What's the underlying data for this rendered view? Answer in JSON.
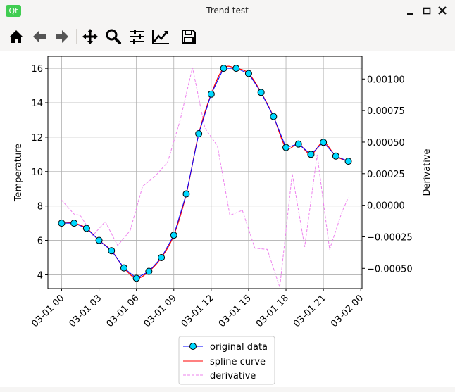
{
  "window": {
    "app_logo": "Qt",
    "title": "Trend test"
  },
  "toolbar": {
    "icons": [
      "home-icon",
      "back-icon",
      "forward-icon",
      "pan-icon",
      "zoom-icon",
      "configure-subplots-icon",
      "edit-axes-icon",
      "save-icon"
    ]
  },
  "colors": {
    "original_line": "#0000ff",
    "marker_face": "#00d8ff",
    "spline": "#ff0000",
    "derivative": "#ee82ee",
    "grid": "#b0b0b0"
  },
  "chart_data": {
    "type": "line",
    "xlabel": "",
    "ylabel_left": "Temperature",
    "ylabel_right": "Derivative",
    "x_tick_labels": [
      "03-01 00",
      "03-01 03",
      "03-01 06",
      "03-01 09",
      "03-01 12",
      "03-01 15",
      "03-01 18",
      "03-01 21",
      "03-02 00"
    ],
    "x_tick_hours": [
      0,
      3,
      6,
      9,
      12,
      15,
      18,
      21,
      24
    ],
    "xlim_hours": [
      -1.1,
      24.1
    ],
    "ylim_left": [
      3.2,
      16.7
    ],
    "ylim_right": [
      -0.00066,
      0.00118
    ],
    "y_ticks_left": [
      "4",
      "6",
      "8",
      "10",
      "12",
      "14",
      "16"
    ],
    "y_ticks_right": [
      "0.00100",
      "0.00075",
      "0.00050",
      "0.00025",
      "0.00000",
      "−0.00025",
      "−0.00050"
    ],
    "y_ticks_right_values": [
      0.001,
      0.00075,
      0.0005,
      0.00025,
      0,
      -0.00025,
      -0.0005
    ],
    "grid": true,
    "legend_position": "below",
    "x_hours": [
      0,
      1,
      2,
      3,
      4,
      5,
      6,
      7,
      8,
      9,
      10,
      11,
      12,
      13,
      14,
      15,
      16,
      17,
      18,
      19,
      20,
      21,
      22,
      23
    ],
    "series": [
      {
        "name": "original data",
        "values": [
          7.0,
          7.0,
          6.7,
          6.0,
          5.4,
          4.4,
          3.8,
          4.2,
          5.0,
          6.3,
          8.7,
          12.2,
          14.5,
          16.0,
          16.0,
          15.7,
          14.6,
          13.2,
          11.4,
          11.6,
          11.0,
          11.7,
          10.9,
          10.6
        ]
      },
      {
        "name": "spline curve",
        "values": [
          7.0,
          7.0,
          6.7,
          6.0,
          5.4,
          4.4,
          3.8,
          4.2,
          5.0,
          6.3,
          8.7,
          12.2,
          14.5,
          16.0,
          16.0,
          15.7,
          14.6,
          13.2,
          11.4,
          11.6,
          11.0,
          11.7,
          10.9,
          10.6
        ]
      },
      {
        "name": "derivative",
        "axis": "right",
        "x": [
          0,
          1,
          1.5,
          2.5,
          3.5,
          4.5,
          5.5,
          6.5,
          7.5,
          8.5,
          9.5,
          10.5,
          11.5,
          12.5,
          13.5,
          14.5,
          15.5,
          16.5,
          17.5,
          18.5,
          19.5,
          20.5,
          21.5,
          22.5,
          23
        ],
        "values": [
          4e-05,
          -7e-05,
          -8e-05,
          -0.00024,
          -0.00013,
          -0.00032,
          -0.0002,
          0.00015,
          0.00023,
          0.00034,
          0.00067,
          0.00109,
          0.00061,
          0.00047,
          -8e-05,
          -4e-05,
          -0.00034,
          -0.00035,
          -0.00065,
          0.00025,
          -0.00033,
          0.0004,
          -0.00035,
          -5e-05,
          6e-05
        ]
      }
    ]
  }
}
